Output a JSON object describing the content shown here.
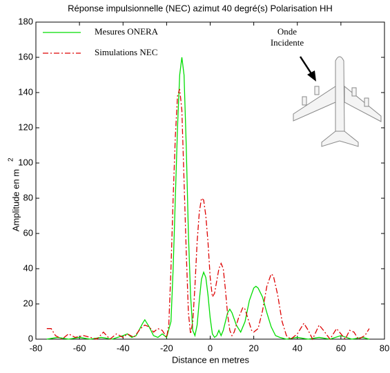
{
  "chart_data": {
    "type": "line",
    "title": "Réponse impulsionnelle (NEC) azimut 40 degré(s) Polarisation HH",
    "xlabel": "Distance en metres",
    "ylabel": "Amplitude en m",
    "ylabel_superscript": "2",
    "annotation": [
      "Onde",
      "Incidente"
    ],
    "xlim": [
      -80,
      80
    ],
    "xticks": [
      -80,
      -60,
      -40,
      -20,
      0,
      20,
      40,
      60,
      80
    ],
    "ylim": [
      0,
      180
    ],
    "yticks": [
      0,
      20,
      40,
      60,
      80,
      100,
      120,
      140,
      160,
      180
    ],
    "grid": false,
    "legend": "upper left",
    "series": [
      {
        "name": "Mesures ONERA",
        "color": "#00dd00",
        "dash": "solid",
        "x": [
          -75,
          -70,
          -65,
          -60,
          -55,
          -50,
          -45,
          -40,
          -38,
          -36,
          -34,
          -31,
          -30,
          -28,
          -26,
          -24,
          -22,
          -20,
          -18,
          -17,
          -16,
          -15,
          -14,
          -13,
          -12,
          -11,
          -10,
          -9,
          -8,
          -7,
          -6,
          -5,
          -4,
          -3,
          -2,
          -1,
          0,
          1,
          2,
          3,
          4,
          5,
          6,
          8,
          9,
          10,
          12,
          14,
          16,
          18,
          20,
          21,
          22,
          24,
          26,
          28,
          30,
          32,
          35,
          40,
          45,
          50,
          55,
          60,
          65,
          70,
          73
        ],
        "values": [
          0,
          1,
          0,
          1,
          0,
          1,
          0,
          2,
          3,
          1,
          2,
          9,
          11,
          7,
          2,
          1,
          3,
          1,
          10,
          40,
          80,
          120,
          150,
          160,
          150,
          110,
          60,
          25,
          5,
          2,
          8,
          22,
          34,
          38,
          35,
          25,
          12,
          3,
          1,
          2,
          5,
          2,
          5,
          15,
          17,
          15,
          8,
          4,
          10,
          22,
          29,
          30,
          29,
          24,
          15,
          7,
          2,
          1,
          0,
          1,
          0,
          1,
          0,
          2,
          0,
          1,
          0
        ]
      },
      {
        "name": "Simulations NEC",
        "color": "#dd0000",
        "dash": "dashdot",
        "x": [
          -75,
          -73,
          -71,
          -68,
          -65,
          -62,
          -58,
          -55,
          -52,
          -49,
          -46,
          -43,
          -40,
          -38,
          -35,
          -32,
          -30,
          -28,
          -26,
          -24,
          -22,
          -20,
          -19,
          -18,
          -17,
          -16,
          -15,
          -14,
          -13,
          -12,
          -11,
          -10,
          -9,
          -8,
          -7,
          -6,
          -5,
          -4,
          -3,
          -2,
          -1,
          0,
          1,
          2,
          3,
          4,
          5,
          6,
          7,
          8,
          9,
          10,
          11,
          13,
          15,
          16,
          18,
          19,
          20,
          22,
          24,
          26,
          28,
          29,
          31,
          33,
          35,
          37,
          40,
          43,
          45,
          47,
          50,
          52,
          55,
          58,
          60,
          62,
          64,
          66,
          68,
          71,
          73
        ],
        "values": [
          6,
          6,
          2,
          0,
          3,
          1,
          2,
          1,
          0,
          4,
          0,
          3,
          1,
          3,
          1,
          6,
          8,
          7,
          4,
          6,
          5,
          1,
          8,
          40,
          80,
          115,
          138,
          142,
          130,
          90,
          50,
          15,
          3,
          10,
          30,
          55,
          72,
          80,
          79,
          70,
          55,
          35,
          24,
          26,
          33,
          40,
          43,
          40,
          28,
          14,
          5,
          2,
          4,
          12,
          18,
          17,
          9,
          5,
          4,
          6,
          16,
          30,
          37,
          36,
          25,
          10,
          2,
          0,
          3,
          9,
          5,
          0,
          8,
          5,
          0,
          6,
          3,
          0,
          5,
          4,
          0,
          2,
          6
        ]
      }
    ]
  }
}
